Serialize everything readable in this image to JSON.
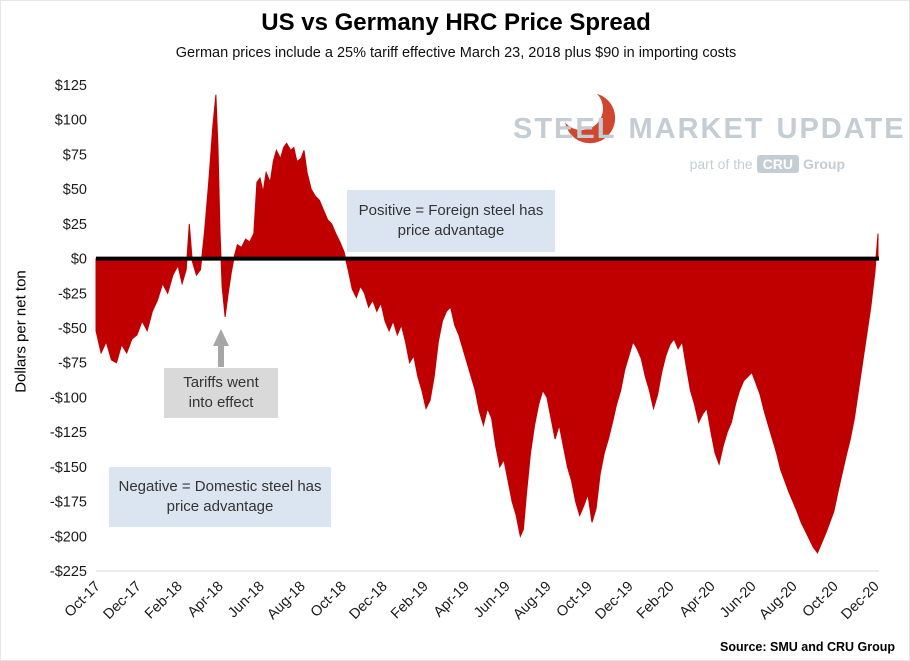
{
  "header": {
    "title": "US vs Germany HRC Price Spread",
    "subtitle": "German prices include a 25% tariff effective March 23, 2018 plus $90 in importing costs"
  },
  "annotations": {
    "positive": "Positive = Foreign steel has price advantage",
    "tariffs": "Tariffs went into effect",
    "negative": "Negative = Domestic steel has price advantage",
    "blue_bg": "#DBE5F1",
    "gray_bg": "#D9D9D9",
    "arrow_color": "#A6A6A6"
  },
  "watermark": {
    "steel": "STEEL",
    "market": "MARKET",
    "update": "UPDATE",
    "part_of": "part of the",
    "cru": "CRU",
    "group": "Group",
    "text_color": "#C4CDD4",
    "logo_color": "#D0472F"
  },
  "source": "Source: SMU and CRU Group",
  "chart_data": {
    "type": "area",
    "title": "US vs Germany HRC Price Spread",
    "xlabel": "",
    "ylabel": "Dollars per net ton",
    "x_unit": "months since Oct-2017",
    "xlim": [
      0,
      38.2
    ],
    "ylim": [
      -225,
      125
    ],
    "baseline": 0,
    "grid": false,
    "area_color": "#C00000",
    "zero_line_color": "#000000",
    "x_ticks": [
      {
        "value": 0,
        "label": "Oct-17"
      },
      {
        "value": 2,
        "label": "Dec-17"
      },
      {
        "value": 4,
        "label": "Feb-18"
      },
      {
        "value": 6,
        "label": "Apr-18"
      },
      {
        "value": 8,
        "label": "Jun-18"
      },
      {
        "value": 10,
        "label": "Aug-18"
      },
      {
        "value": 12,
        "label": "Oct-18"
      },
      {
        "value": 14,
        "label": "Dec-18"
      },
      {
        "value": 16,
        "label": "Feb-19"
      },
      {
        "value": 18,
        "label": "Apr-19"
      },
      {
        "value": 20,
        "label": "Jun-19"
      },
      {
        "value": 22,
        "label": "Aug-19"
      },
      {
        "value": 24,
        "label": "Oct-19"
      },
      {
        "value": 26,
        "label": "Dec-19"
      },
      {
        "value": 28,
        "label": "Feb-20"
      },
      {
        "value": 30,
        "label": "Apr-20"
      },
      {
        "value": 32,
        "label": "Jun-20"
      },
      {
        "value": 34,
        "label": "Aug-20"
      },
      {
        "value": 36,
        "label": "Oct-20"
      },
      {
        "value": 38,
        "label": "Dec-20"
      }
    ],
    "y_ticks": [
      {
        "value": 125,
        "label": "$125"
      },
      {
        "value": 100,
        "label": "$100"
      },
      {
        "value": 75,
        "label": "$75"
      },
      {
        "value": 50,
        "label": "$50"
      },
      {
        "value": 25,
        "label": "$25"
      },
      {
        "value": 0,
        "label": "$0"
      },
      {
        "value": -25,
        "label": "-$25"
      },
      {
        "value": -50,
        "label": "-$50"
      },
      {
        "value": -75,
        "label": "-$75"
      },
      {
        "value": -100,
        "label": "-$100"
      },
      {
        "value": -125,
        "label": "-$125"
      },
      {
        "value": -150,
        "label": "-$150"
      },
      {
        "value": -175,
        "label": "-$175"
      },
      {
        "value": -200,
        "label": "-$200"
      },
      {
        "value": -225,
        "label": "-$225"
      }
    ],
    "points": [
      [
        0,
        -52
      ],
      [
        0.25,
        -68
      ],
      [
        0.5,
        -60
      ],
      [
        0.75,
        -73
      ],
      [
        1,
        -75
      ],
      [
        1.25,
        -62
      ],
      [
        1.5,
        -68
      ],
      [
        1.75,
        -58
      ],
      [
        2,
        -55
      ],
      [
        2.25,
        -45
      ],
      [
        2.5,
        -52
      ],
      [
        2.75,
        -38
      ],
      [
        3,
        -30
      ],
      [
        3.25,
        -18
      ],
      [
        3.5,
        -25
      ],
      [
        3.75,
        -12
      ],
      [
        4,
        -5
      ],
      [
        4.2,
        -18
      ],
      [
        4.4,
        -8
      ],
      [
        4.55,
        25
      ],
      [
        4.7,
        -2
      ],
      [
        4.9,
        -12
      ],
      [
        5.1,
        -8
      ],
      [
        5.3,
        20
      ],
      [
        5.5,
        55
      ],
      [
        5.7,
        95
      ],
      [
        5.85,
        118
      ],
      [
        5.95,
        80
      ],
      [
        6.05,
        20
      ],
      [
        6.15,
        -20
      ],
      [
        6.3,
        -42
      ],
      [
        6.45,
        -25
      ],
      [
        6.6,
        -10
      ],
      [
        6.75,
        2
      ],
      [
        6.9,
        10
      ],
      [
        7.1,
        8
      ],
      [
        7.3,
        14
      ],
      [
        7.5,
        12
      ],
      [
        7.7,
        18
      ],
      [
        7.85,
        55
      ],
      [
        8,
        58
      ],
      [
        8.15,
        48
      ],
      [
        8.3,
        62
      ],
      [
        8.5,
        55
      ],
      [
        8.65,
        70
      ],
      [
        8.8,
        78
      ],
      [
        9,
        72
      ],
      [
        9.15,
        80
      ],
      [
        9.3,
        83
      ],
      [
        9.5,
        78
      ],
      [
        9.65,
        80
      ],
      [
        9.8,
        70
      ],
      [
        10,
        72
      ],
      [
        10.15,
        78
      ],
      [
        10.3,
        62
      ],
      [
        10.5,
        50
      ],
      [
        10.7,
        45
      ],
      [
        10.9,
        42
      ],
      [
        11.1,
        35
      ],
      [
        11.3,
        28
      ],
      [
        11.5,
        25
      ],
      [
        11.7,
        18
      ],
      [
        11.9,
        12
      ],
      [
        12.1,
        5
      ],
      [
        12.3,
        -8
      ],
      [
        12.5,
        -22
      ],
      [
        12.7,
        -28
      ],
      [
        12.9,
        -20
      ],
      [
        13.1,
        -25
      ],
      [
        13.3,
        -35
      ],
      [
        13.5,
        -30
      ],
      [
        13.7,
        -38
      ],
      [
        13.9,
        -32
      ],
      [
        14.1,
        -45
      ],
      [
        14.3,
        -52
      ],
      [
        14.5,
        -45
      ],
      [
        14.7,
        -55
      ],
      [
        14.9,
        -48
      ],
      [
        15.1,
        -60
      ],
      [
        15.3,
        -75
      ],
      [
        15.5,
        -70
      ],
      [
        15.7,
        -85
      ],
      [
        15.9,
        -95
      ],
      [
        16.1,
        -108
      ],
      [
        16.3,
        -102
      ],
      [
        16.5,
        -85
      ],
      [
        16.7,
        -60
      ],
      [
        16.9,
        -45
      ],
      [
        17.1,
        -38
      ],
      [
        17.3,
        -35
      ],
      [
        17.5,
        -48
      ],
      [
        17.7,
        -55
      ],
      [
        17.9,
        -65
      ],
      [
        18.1,
        -75
      ],
      [
        18.3,
        -85
      ],
      [
        18.5,
        -95
      ],
      [
        18.7,
        -110
      ],
      [
        18.9,
        -120
      ],
      [
        19.1,
        -108
      ],
      [
        19.3,
        -115
      ],
      [
        19.5,
        -135
      ],
      [
        19.7,
        -150
      ],
      [
        19.9,
        -145
      ],
      [
        20.1,
        -160
      ],
      [
        20.3,
        -175
      ],
      [
        20.5,
        -185
      ],
      [
        20.7,
        -200
      ],
      [
        20.85,
        -195
      ],
      [
        21,
        -170
      ],
      [
        21.2,
        -140
      ],
      [
        21.4,
        -120
      ],
      [
        21.6,
        -105
      ],
      [
        21.8,
        -95
      ],
      [
        22,
        -100
      ],
      [
        22.2,
        -115
      ],
      [
        22.4,
        -130
      ],
      [
        22.6,
        -120
      ],
      [
        22.8,
        -135
      ],
      [
        23,
        -150
      ],
      [
        23.2,
        -160
      ],
      [
        23.4,
        -175
      ],
      [
        23.6,
        -185
      ],
      [
        23.8,
        -178
      ],
      [
        24,
        -170
      ],
      [
        24.2,
        -190
      ],
      [
        24.4,
        -180
      ],
      [
        24.6,
        -155
      ],
      [
        24.8,
        -140
      ],
      [
        25,
        -130
      ],
      [
        25.2,
        -118
      ],
      [
        25.4,
        -105
      ],
      [
        25.6,
        -95
      ],
      [
        25.8,
        -80
      ],
      [
        26,
        -70
      ],
      [
        26.2,
        -60
      ],
      [
        26.4,
        -65
      ],
      [
        26.6,
        -72
      ],
      [
        26.8,
        -85
      ],
      [
        27,
        -95
      ],
      [
        27.2,
        -108
      ],
      [
        27.4,
        -98
      ],
      [
        27.6,
        -82
      ],
      [
        27.8,
        -70
      ],
      [
        28,
        -62
      ],
      [
        28.2,
        -58
      ],
      [
        28.4,
        -65
      ],
      [
        28.6,
        -60
      ],
      [
        28.8,
        -78
      ],
      [
        29,
        -95
      ],
      [
        29.2,
        -105
      ],
      [
        29.4,
        -118
      ],
      [
        29.6,
        -112
      ],
      [
        29.8,
        -108
      ],
      [
        30,
        -125
      ],
      [
        30.2,
        -140
      ],
      [
        30.4,
        -148
      ],
      [
        30.6,
        -135
      ],
      [
        30.8,
        -125
      ],
      [
        31,
        -118
      ],
      [
        31.2,
        -105
      ],
      [
        31.4,
        -95
      ],
      [
        31.6,
        -88
      ],
      [
        31.8,
        -85
      ],
      [
        32,
        -82
      ],
      [
        32.2,
        -90
      ],
      [
        32.4,
        -98
      ],
      [
        32.6,
        -110
      ],
      [
        32.8,
        -120
      ],
      [
        33,
        -130
      ],
      [
        33.2,
        -140
      ],
      [
        33.4,
        -152
      ],
      [
        33.6,
        -160
      ],
      [
        33.8,
        -168
      ],
      [
        34,
        -175
      ],
      [
        34.2,
        -182
      ],
      [
        34.4,
        -190
      ],
      [
        34.6,
        -196
      ],
      [
        34.8,
        -202
      ],
      [
        35,
        -208
      ],
      [
        35.2,
        -212
      ],
      [
        35.4,
        -205
      ],
      [
        35.6,
        -198
      ],
      [
        35.8,
        -190
      ],
      [
        36,
        -182
      ],
      [
        36.2,
        -168
      ],
      [
        36.4,
        -155
      ],
      [
        36.6,
        -142
      ],
      [
        36.8,
        -130
      ],
      [
        37,
        -115
      ],
      [
        37.2,
        -95
      ],
      [
        37.4,
        -75
      ],
      [
        37.6,
        -55
      ],
      [
        37.8,
        -35
      ],
      [
        38,
        -10
      ],
      [
        38.15,
        18
      ]
    ]
  }
}
